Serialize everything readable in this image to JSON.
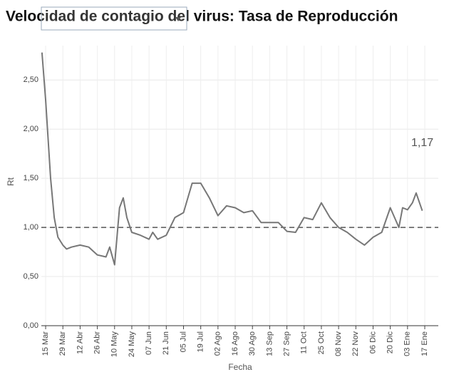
{
  "chart_data": {
    "type": "line",
    "title": "Velocidad de contagio del virus: Tasa de Reproducción",
    "x_label": "Fecha",
    "y_label": "Rt",
    "x": [
      -3,
      0,
      4,
      7,
      10,
      14,
      17,
      21,
      28,
      35,
      42,
      49,
      52,
      56,
      60,
      63,
      66,
      70,
      77,
      84,
      87,
      91,
      98,
      105,
      112,
      119,
      126,
      133,
      140,
      147,
      154,
      161,
      168,
      175,
      182,
      189,
      196,
      203,
      210,
      217,
      224,
      231,
      238,
      245,
      252,
      259,
      266,
      273,
      280,
      287,
      290,
      294,
      298,
      301,
      306
    ],
    "values": [
      2.78,
      2.3,
      1.5,
      1.1,
      0.9,
      0.82,
      0.78,
      0.8,
      0.82,
      0.8,
      0.72,
      0.7,
      0.8,
      0.62,
      1.2,
      1.3,
      1.1,
      0.95,
      0.92,
      0.88,
      0.95,
      0.88,
      0.92,
      1.1,
      1.15,
      1.45,
      1.45,
      1.3,
      1.12,
      1.22,
      1.2,
      1.15,
      1.17,
      1.05,
      1.05,
      1.05,
      0.96,
      0.95,
      1.1,
      1.08,
      1.25,
      1.1,
      1.0,
      0.95,
      0.88,
      0.82,
      0.9,
      0.95,
      1.2,
      1.0,
      1.2,
      1.18,
      1.25,
      1.35,
      1.17
    ],
    "value_labels": [
      null,
      null,
      null,
      null,
      null,
      null,
      null,
      null,
      null,
      null,
      null,
      null,
      null,
      null,
      null,
      null,
      null,
      null,
      null,
      null,
      null,
      null,
      null,
      null,
      null,
      null,
      null,
      null,
      null,
      null,
      null,
      null,
      null,
      null,
      null,
      null,
      null,
      null,
      null,
      null,
      null,
      null,
      null,
      null,
      null,
      null,
      null,
      null,
      null,
      null,
      null,
      null,
      null,
      null,
      "1,17"
    ],
    "color": "#777777",
    "reference_line": 1,
    "xlim": [
      -3.5,
      319
    ],
    "xticks": [
      {
        "value": 0,
        "label": "15 Mar"
      },
      {
        "value": 14,
        "label": "29 Mar"
      },
      {
        "value": 28,
        "label": "12 Abr"
      },
      {
        "value": 42,
        "label": "26 Abr"
      },
      {
        "value": 56,
        "label": "10 May"
      },
      {
        "value": 70,
        "label": "24 May"
      },
      {
        "value": 84,
        "label": "07 Jun"
      },
      {
        "value": 98,
        "label": "21 Jun"
      },
      {
        "value": 112,
        "label": "05 Jul"
      },
      {
        "value": 126,
        "label": "19 Jul"
      },
      {
        "value": 140,
        "label": "02 Ago"
      },
      {
        "value": 154,
        "label": "16 Ago"
      },
      {
        "value": 168,
        "label": "30 Ago"
      },
      {
        "value": 182,
        "label": "13 Sep"
      },
      {
        "value": 196,
        "label": "27 Sep"
      },
      {
        "value": 210,
        "label": "11 Oct"
      },
      {
        "value": 224,
        "label": "25 Oct"
      },
      {
        "value": 238,
        "label": "08 Nov"
      },
      {
        "value": 252,
        "label": "22 Nov"
      },
      {
        "value": 266,
        "label": "06 Dic"
      },
      {
        "value": 280,
        "label": "20 Dic"
      },
      {
        "value": 294,
        "label": "03 Ene"
      },
      {
        "value": 308,
        "label": "17 Ene"
      }
    ],
    "ylim": [
      0,
      2.85
    ],
    "yticks": [
      {
        "value": 0,
        "label": "0,00"
      },
      {
        "value": 0.5,
        "label": "0,50"
      },
      {
        "value": 1,
        "label": "1,00"
      },
      {
        "value": 1.5,
        "label": "1,50"
      },
      {
        "value": 2,
        "label": "2,00"
      },
      {
        "value": 2.5,
        "label": "2,50"
      }
    ],
    "grid": true
  }
}
